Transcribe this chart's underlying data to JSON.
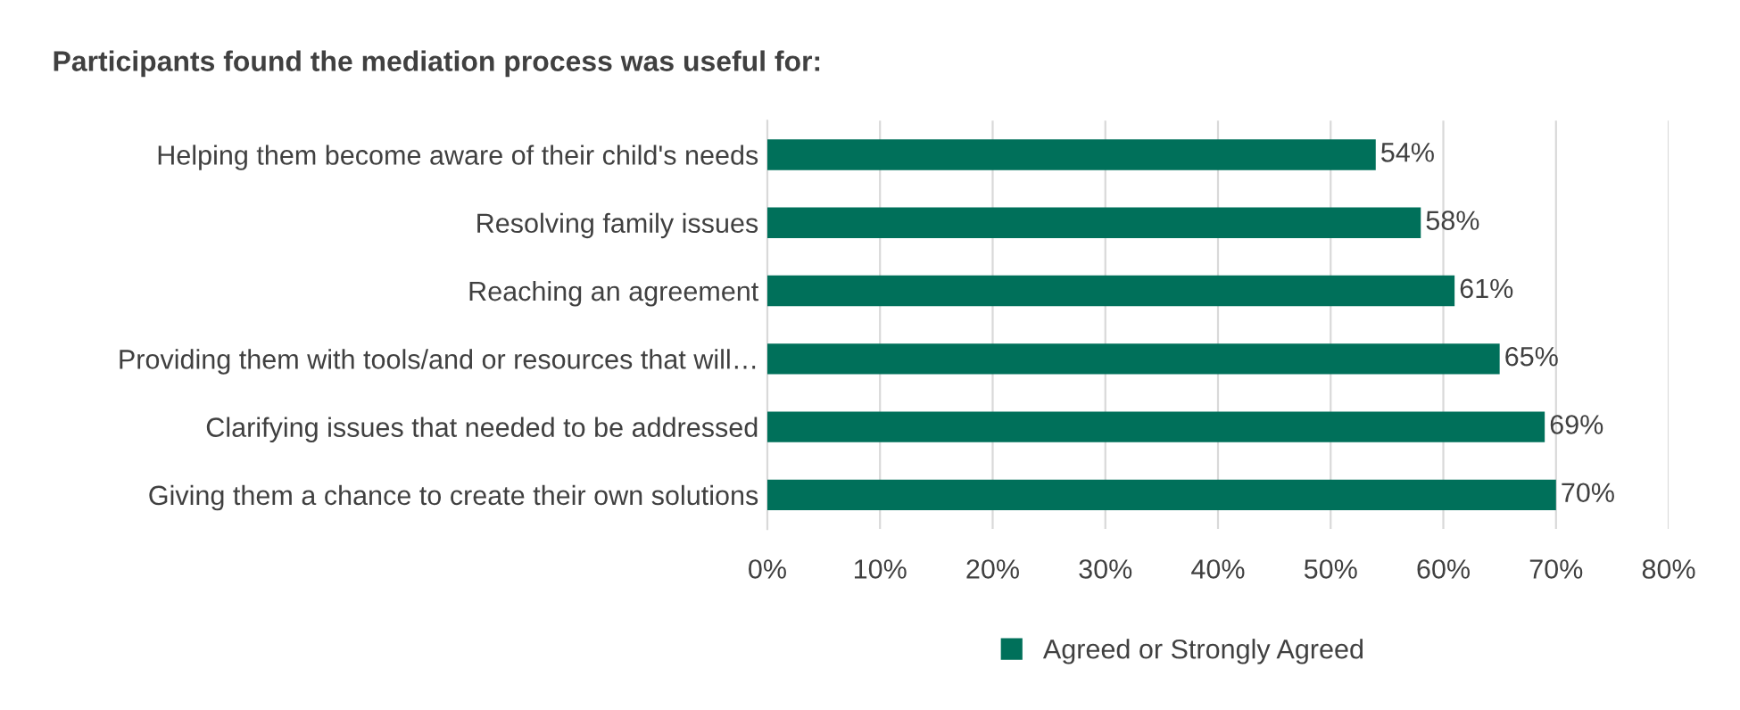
{
  "chart_data": {
    "type": "bar",
    "orientation": "horizontal",
    "title": "Participants found the mediation process was useful for:",
    "categories": [
      "Helping them become aware of their child's needs",
      "Resolving family issues",
      "Reaching an agreement",
      "Providing them with tools/and or resources that will…",
      "Clarifying issues that needed to be addressed",
      "Giving them a chance to create their own solutions"
    ],
    "series": [
      {
        "name": "Agreed or Strongly Agreed",
        "color": "#00705a",
        "values": [
          54,
          58,
          61,
          65,
          69,
          70
        ],
        "value_labels": [
          "54%",
          "58%",
          "61%",
          "65%",
          "69%",
          "70%"
        ]
      }
    ],
    "xlim": [
      0,
      80
    ],
    "xticks": [
      {
        "value": 0,
        "label": "0%"
      },
      {
        "value": 10,
        "label": "10%"
      },
      {
        "value": 20,
        "label": "20%"
      },
      {
        "value": 30,
        "label": "30%"
      },
      {
        "value": 40,
        "label": "40%"
      },
      {
        "value": 50,
        "label": "50%"
      },
      {
        "value": 60,
        "label": "60%"
      },
      {
        "value": 70,
        "label": "70%"
      },
      {
        "value": 80,
        "label": "80%"
      }
    ],
    "grid": "x",
    "legend": "bottom"
  }
}
